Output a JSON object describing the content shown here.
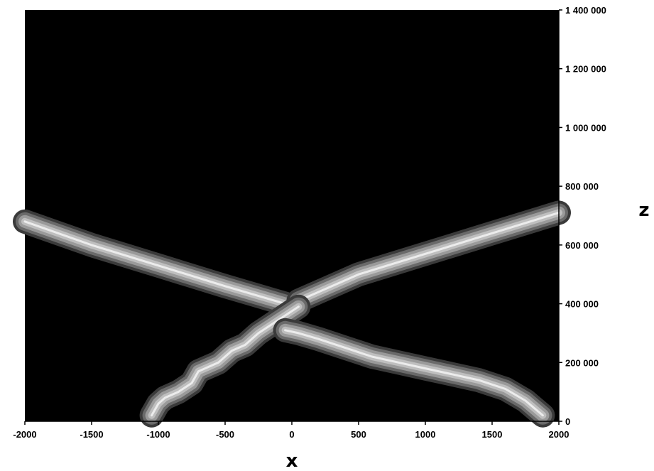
{
  "chart_data": {
    "type": "line",
    "title": "",
    "xlabel": "x",
    "ylabel": "z",
    "xlim": [
      -2000,
      2000
    ],
    "ylim": [
      0,
      1400000
    ],
    "x_ticks": [
      -2000,
      -1500,
      -1000,
      -500,
      0,
      500,
      1000,
      1500,
      2000
    ],
    "x_tick_labels": [
      "-2000",
      "-1500",
      "-1000",
      "-500",
      "0",
      "500",
      "1000",
      "1500",
      "2000"
    ],
    "y_ticks": [
      0,
      200000,
      400000,
      600000,
      800000,
      1000000,
      1200000,
      1400000
    ],
    "y_tick_labels": [
      "0",
      "200 000",
      "400 000",
      "600 000",
      "800 000",
      "1 000 000",
      "1 200 000",
      "1 400 000"
    ],
    "y_axis_side": "right",
    "grid": false,
    "legend": "none",
    "background_color": "#000000",
    "trace_color": "#bfbfbf",
    "series": [
      {
        "x": [
          -2000,
          -1500,
          -1000,
          -500,
          -200,
          -50
        ],
        "y": [
          680000,
          600000,
          530000,
          460000,
          420000,
          400000
        ]
      },
      {
        "x": [
          50,
          200,
          500,
          1000,
          1500,
          2000
        ],
        "y": [
          410000,
          440000,
          500000,
          570000,
          640000,
          710000
        ]
      },
      {
        "x": [
          -1050,
          -1000,
          -950,
          -850,
          -750,
          -700,
          -550,
          -450,
          -350,
          -250,
          -150,
          -50,
          50
        ],
        "y": [
          20000,
          60000,
          80000,
          100000,
          130000,
          170000,
          200000,
          240000,
          260000,
          300000,
          330000,
          360000,
          390000
        ]
      },
      {
        "x": [
          -50,
          50,
          200,
          400,
          600,
          800,
          1000,
          1200,
          1400,
          1600,
          1750,
          1880
        ],
        "y": [
          310000,
          300000,
          280000,
          250000,
          220000,
          200000,
          180000,
          160000,
          140000,
          110000,
          70000,
          20000
        ]
      }
    ]
  }
}
